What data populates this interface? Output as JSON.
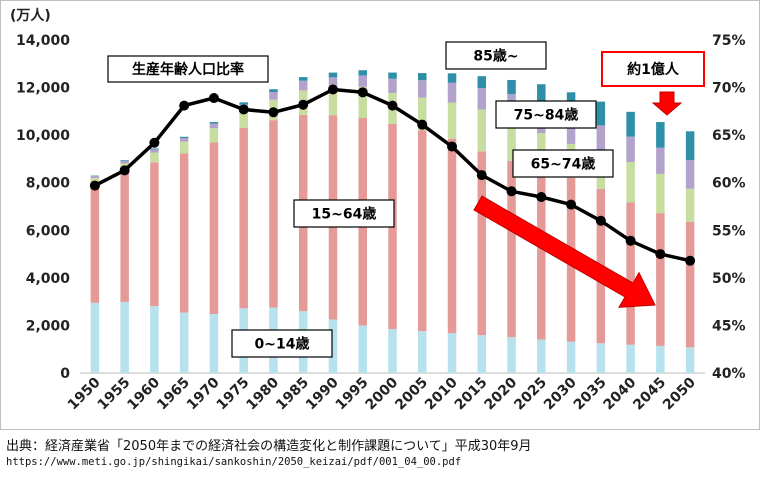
{
  "chart_data": {
    "type": "bar",
    "subtype": "stacked-bar-with-line",
    "y_unit": "(万人)",
    "categories": [
      "1950",
      "1955",
      "1960",
      "1965",
      "1970",
      "1975",
      "1980",
      "1985",
      "1990",
      "1995",
      "2000",
      "2005",
      "2010",
      "2015",
      "2020",
      "2025",
      "2030",
      "2035",
      "2040",
      "2045",
      "2050"
    ],
    "ylim_left": [
      0,
      14000
    ],
    "yticks_left": [
      "0",
      "2,000",
      "4,000",
      "6,000",
      "8,000",
      "10,000",
      "12,000",
      "14,000"
    ],
    "ylim_right": [
      40,
      75
    ],
    "yticks_right": [
      "40%",
      "45%",
      "50%",
      "55%",
      "60%",
      "65%",
      "70%",
      "75%"
    ],
    "series": [
      {
        "name": "0~14歳",
        "color": "#b7e1ec",
        "values": [
          2950,
          2990,
          2810,
          2540,
          2480,
          2720,
          2750,
          2600,
          2250,
          2000,
          1850,
          1760,
          1680,
          1590,
          1510,
          1410,
          1320,
          1250,
          1190,
          1140,
          1080
        ]
      },
      {
        "name": "15~64歳",
        "color": "#e59a98",
        "values": [
          4960,
          5470,
          6050,
          6690,
          7210,
          7580,
          7880,
          8250,
          8590,
          8720,
          8620,
          8440,
          8170,
          7730,
          7410,
          7170,
          6880,
          6490,
          5980,
          5580,
          5280
        ]
      },
      {
        "name": "65~74歳",
        "color": "#c8dea0",
        "values": [
          290,
          350,
          410,
          500,
          600,
          720,
          860,
          1030,
          1170,
          1310,
          1300,
          1380,
          1520,
          1760,
          1740,
          1500,
          1430,
          1520,
          1700,
          1650,
          1390
        ]
      },
      {
        "name": "75~84歳",
        "color": "#b3a3cc",
        "values": [
          80,
          110,
          130,
          150,
          200,
          270,
          320,
          410,
          420,
          480,
          600,
          730,
          830,
          900,
          1060,
          1290,
          1250,
          1150,
          1070,
          1100,
          1200
        ]
      },
      {
        "name": "85歳~",
        "color": "#2e8fa8",
        "values": [
          20,
          30,
          40,
          50,
          60,
          90,
          120,
          150,
          200,
          220,
          260,
          300,
          400,
          500,
          600,
          770,
          920,
          1000,
          1040,
          1080,
          1210
        ]
      }
    ],
    "line_series": {
      "name": "生産年齢人口比率",
      "axis": "right",
      "values": [
        59.7,
        61.3,
        64.2,
        68.1,
        68.9,
        67.7,
        67.4,
        68.2,
        69.8,
        69.5,
        68.1,
        66.1,
        63.8,
        60.8,
        59.1,
        58.5,
        57.7,
        56.0,
        53.9,
        52.5,
        51.8
      ]
    },
    "annotations": {
      "ratio_label": "生産年齢人口比率",
      "age_85": "85歳~",
      "age_75_84": "75~84歳",
      "age_65_74": "65~74歳",
      "age_15_64": "15~64歳",
      "age_0_14": "0~14歳",
      "callout": "約1億人"
    },
    "colors": {
      "line": "#000000",
      "arrow": "#ff0000",
      "callout_border": "#ff0000",
      "axis_text": "#222222"
    }
  },
  "source": {
    "line1": "出典：経済産業省「2050年までの経済社会の構造変化と制作課題について」平成30年9月",
    "line2": "https://www.meti.go.jp/shingikai/sankoshin/2050_keizai/pdf/001_04_00.pdf"
  }
}
